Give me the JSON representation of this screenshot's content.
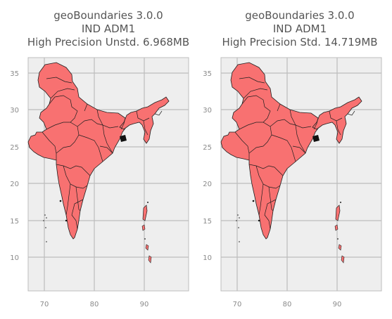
{
  "panels": [
    {
      "title": [
        "geoBoundaries 3.0.0",
        "IND ADM1",
        "High Precision Unstd. 6.968MB"
      ],
      "x_ticks": [
        "70",
        "80",
        "90"
      ],
      "y_ticks": [
        "35",
        "30",
        "25",
        "20",
        "15",
        "10"
      ]
    },
    {
      "title": [
        "geoBoundaries 3.0.0",
        "IND ADM1",
        "High Precision Std. 14.719MB"
      ],
      "x_ticks": [
        "70",
        "80",
        "90"
      ],
      "y_ticks": [
        "35",
        "30",
        "25",
        "20",
        "15",
        "10"
      ]
    }
  ],
  "colors": {
    "land_fill": "#f87171",
    "boundary": "#1f1f1f",
    "axes_bg": "#eeeeee",
    "grid": "#bdbdbd"
  }
}
